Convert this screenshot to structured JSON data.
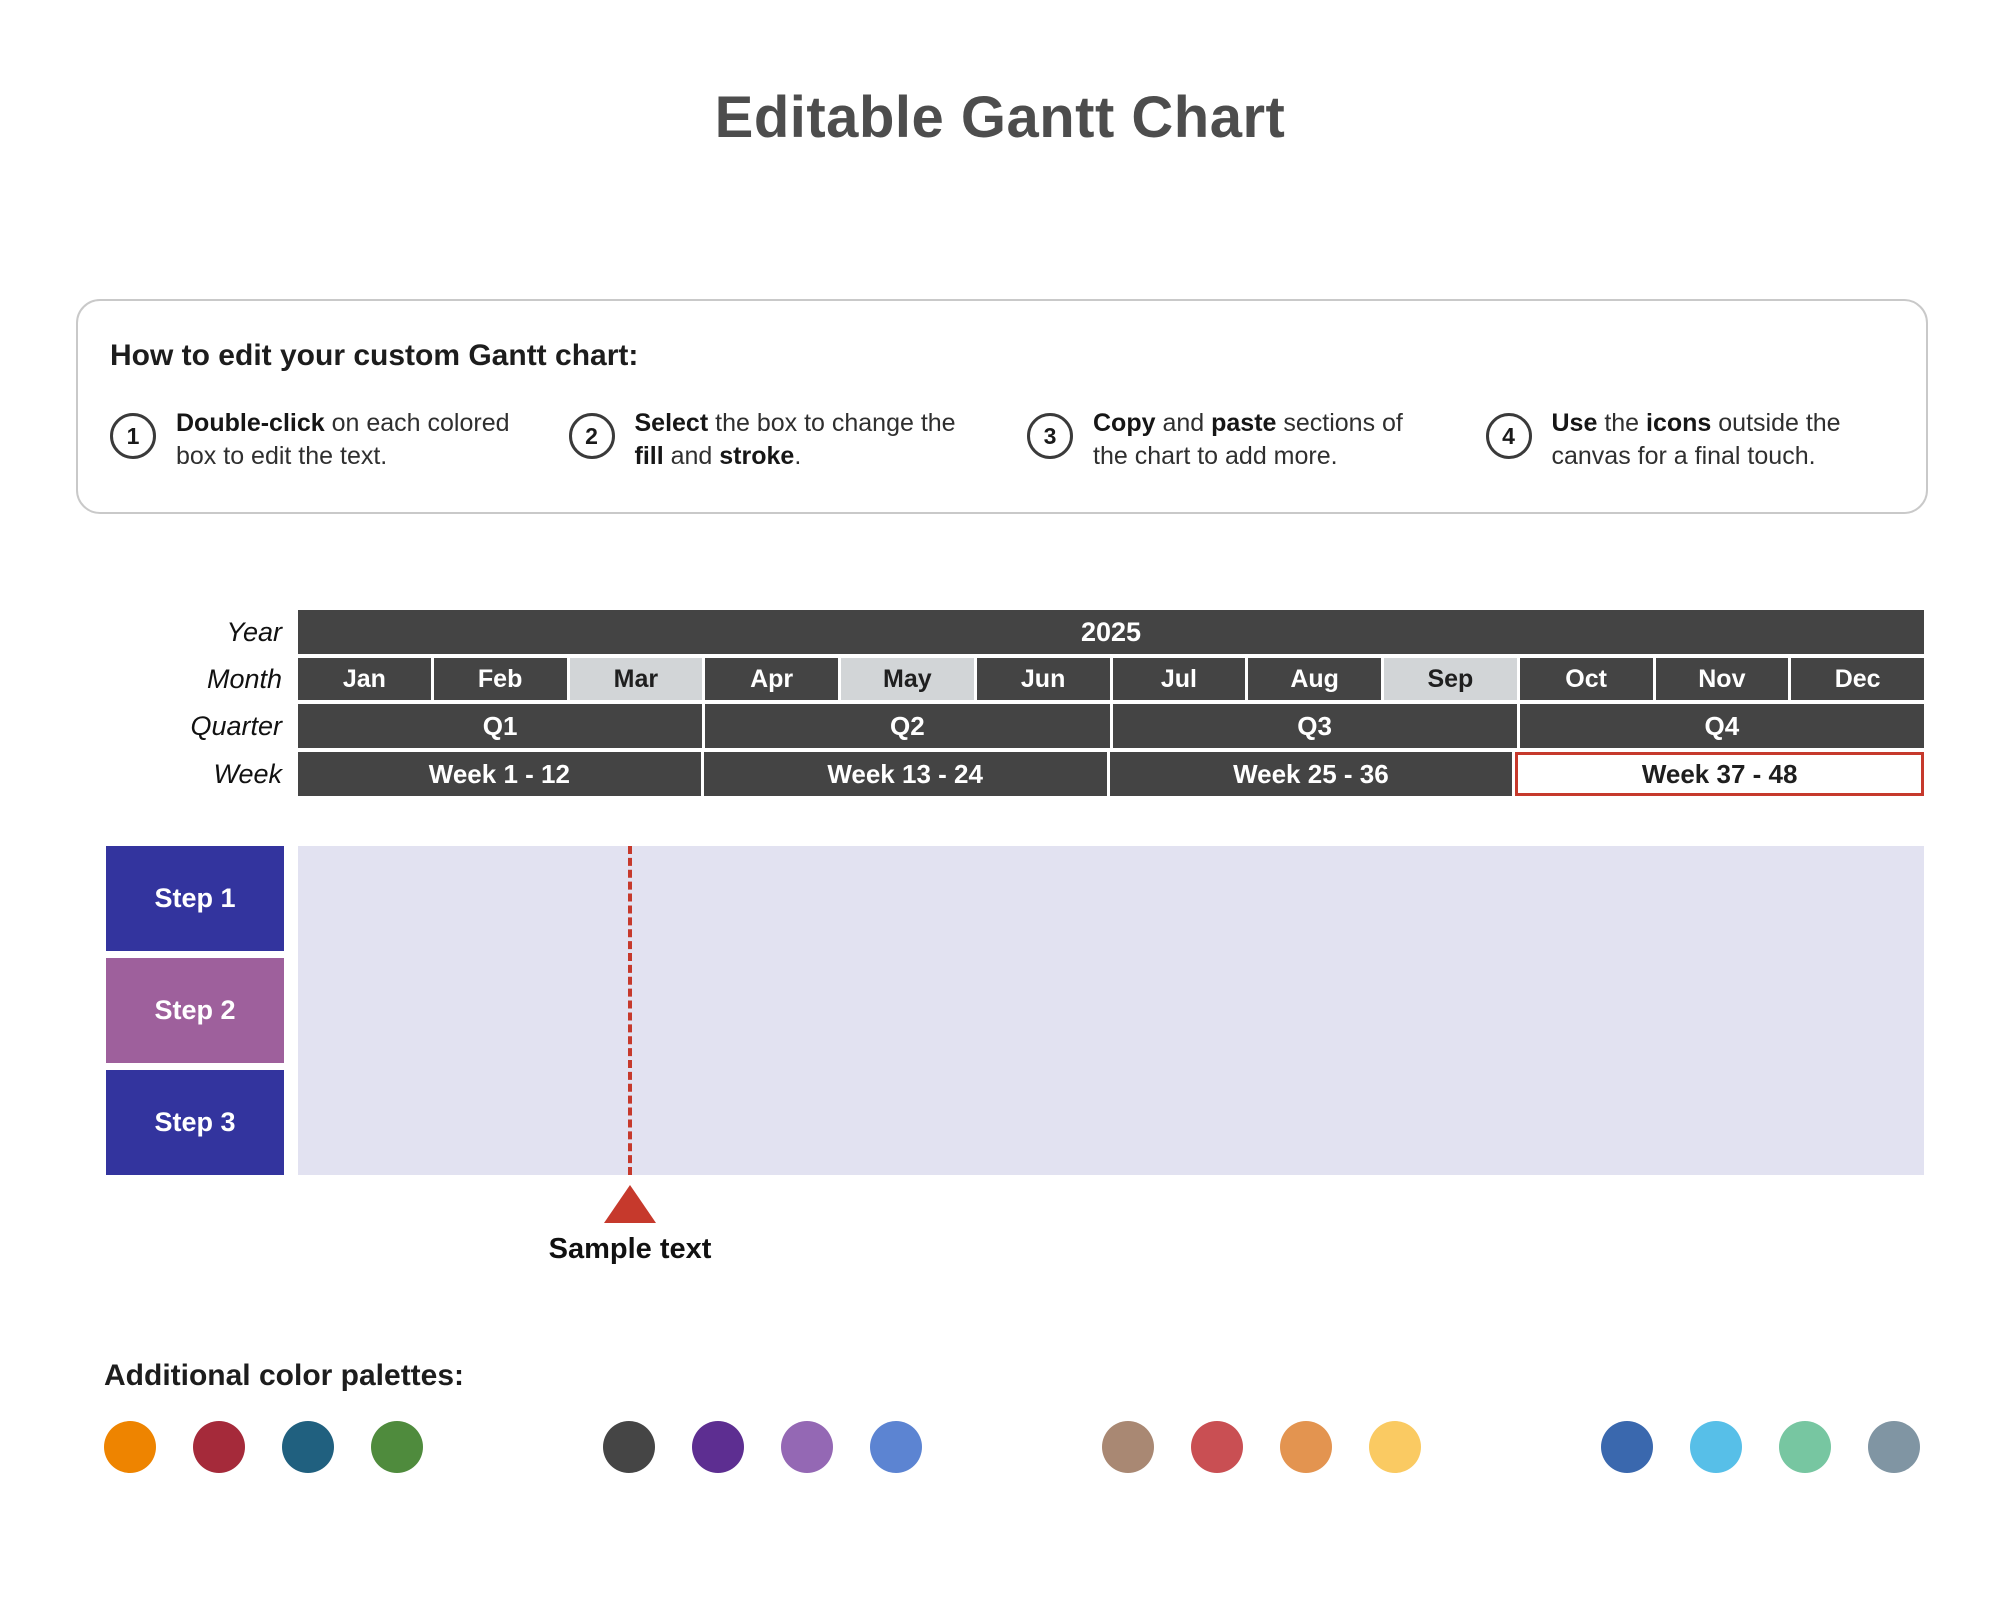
{
  "title": "Editable Gantt Chart",
  "instructions": {
    "heading": "How to edit your custom Gantt chart:",
    "items": [
      {
        "number": "1",
        "segments": [
          [
            "Double-click",
            true
          ],
          [
            " on each colored box to edit the text.",
            false
          ]
        ]
      },
      {
        "number": "2",
        "segments": [
          [
            "Select",
            true
          ],
          [
            " the box to change the ",
            false
          ],
          [
            "fill",
            true
          ],
          [
            " and ",
            false
          ],
          [
            "stroke",
            true
          ],
          [
            ".",
            false
          ]
        ]
      },
      {
        "number": "3",
        "segments": [
          [
            "Copy",
            true
          ],
          [
            " and ",
            false
          ],
          [
            "paste",
            true
          ],
          [
            " sections of the chart to add more.",
            false
          ]
        ]
      },
      {
        "number": "4",
        "segments": [
          [
            "Use",
            true
          ],
          [
            " the ",
            false
          ],
          [
            "icons",
            true
          ],
          [
            " outside the canvas for a final touch.",
            false
          ]
        ]
      }
    ]
  },
  "gantt": {
    "row_labels": {
      "year": "Year",
      "month": "Month",
      "quarter": "Quarter",
      "week": "Week"
    },
    "year": "2025",
    "months": [
      {
        "label": "Jan",
        "variant": "dark"
      },
      {
        "label": "Feb",
        "variant": "dark"
      },
      {
        "label": "Mar",
        "variant": "light"
      },
      {
        "label": "Apr",
        "variant": "dark"
      },
      {
        "label": "May",
        "variant": "light"
      },
      {
        "label": "Jun",
        "variant": "dark"
      },
      {
        "label": "Jul",
        "variant": "dark"
      },
      {
        "label": "Aug",
        "variant": "dark"
      },
      {
        "label": "Sep",
        "variant": "light"
      },
      {
        "label": "Oct",
        "variant": "dark"
      },
      {
        "label": "Nov",
        "variant": "dark"
      },
      {
        "label": "Dec",
        "variant": "dark"
      }
    ],
    "quarters": [
      "Q1",
      "Q2",
      "Q3",
      "Q4"
    ],
    "weeks": [
      {
        "label": "Week 1 - 12",
        "selected": false
      },
      {
        "label": "Week 13 - 24",
        "selected": false
      },
      {
        "label": "Week 25 - 36",
        "selected": false
      },
      {
        "label": "Week 37 - 48",
        "selected": true
      }
    ],
    "steps": [
      {
        "label": "Step 1",
        "color": "#33349E"
      },
      {
        "label": "Step 2",
        "color": "#9E609C"
      },
      {
        "label": "Step 3",
        "color": "#33349E"
      }
    ],
    "milestone": {
      "label": "Sample text"
    }
  },
  "palettes": {
    "heading": "Additional color palettes:",
    "groups": [
      [
        "#EE8400",
        "#A52A3A",
        "#20607F",
        "#4F8B3D"
      ],
      [
        "#454545",
        "#5D2E91",
        "#9468B4",
        "#5C84D2"
      ],
      [
        "#A98873",
        "#C94F53",
        "#E39450",
        "#FACA62"
      ],
      [
        "#3A68AE",
        "#57BFE8",
        "#77C6A1",
        "#8095A3"
      ]
    ]
  },
  "colors": {
    "header_dark": "#444444",
    "month_light": "#D2D5D7",
    "chart_bg": "#E2E2F1",
    "accent_red": "#C6392C"
  },
  "chart_data": {
    "type": "table",
    "title": "Editable Gantt Chart",
    "year": "2025",
    "months": [
      "Jan",
      "Feb",
      "Mar",
      "Apr",
      "May",
      "Jun",
      "Jul",
      "Aug",
      "Sep",
      "Oct",
      "Nov",
      "Dec"
    ],
    "highlighted_months": [
      "Mar",
      "May",
      "Sep"
    ],
    "quarters": [
      "Q1",
      "Q2",
      "Q3",
      "Q4"
    ],
    "weeks": [
      "Week 1 - 12",
      "Week 13 - 24",
      "Week 25 - 36",
      "Week 37 - 48"
    ],
    "selected_week": "Week 37 - 48",
    "rows": [
      "Step 1",
      "Step 2",
      "Step 3"
    ],
    "milestone": {
      "label": "Sample text",
      "position_month": "Mar"
    },
    "legend_position": "none",
    "grid": false
  }
}
